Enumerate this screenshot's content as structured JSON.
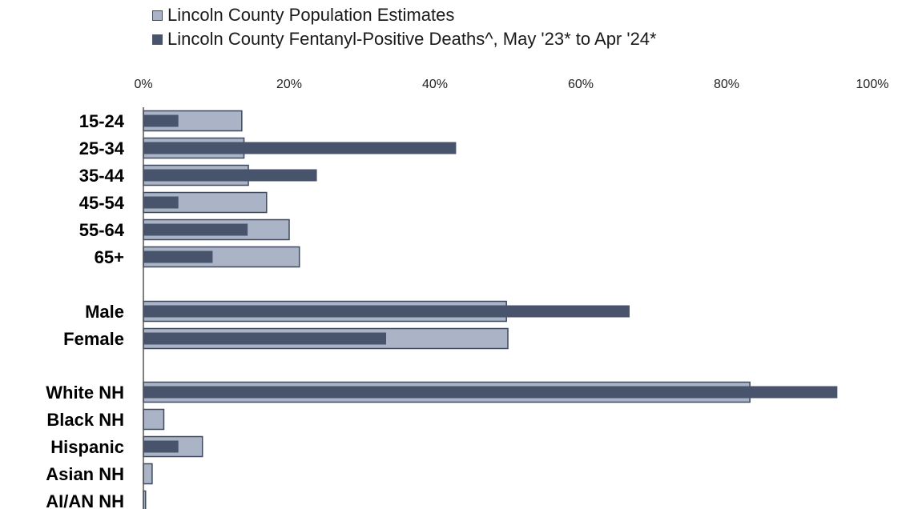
{
  "chart_data": {
    "type": "bar",
    "orientation": "horizontal",
    "categories": [
      "15-24",
      "25-34",
      "35-44",
      "45-54",
      "55-64",
      "65+",
      "Male",
      "Female",
      "White NH",
      "Black NH",
      "Hispanic",
      "Asian NH",
      "AI/AN NH"
    ],
    "series": [
      {
        "name": "Lincoln County Population Estimates",
        "color": "#aab4c6",
        "values": [
          13.5,
          13.8,
          14.4,
          16.9,
          20.0,
          21.4,
          49.8,
          50.0,
          83.2,
          2.8,
          8.1,
          1.2,
          0.3
        ]
      },
      {
        "name": "Lincoln County Fentanyl-Positive Deaths^, May '23* to Apr '24*",
        "color": "#47546c",
        "values": [
          4.8,
          42.9,
          23.8,
          4.8,
          14.3,
          9.5,
          66.7,
          33.3,
          95.2,
          0,
          4.8,
          0,
          0
        ]
      }
    ],
    "x_ticks": [
      "0%",
      "20%",
      "40%",
      "60%",
      "80%",
      "100%"
    ],
    "xlim": [
      0,
      100
    ],
    "legend_position": "top",
    "axis_position": "top",
    "grid": false
  }
}
